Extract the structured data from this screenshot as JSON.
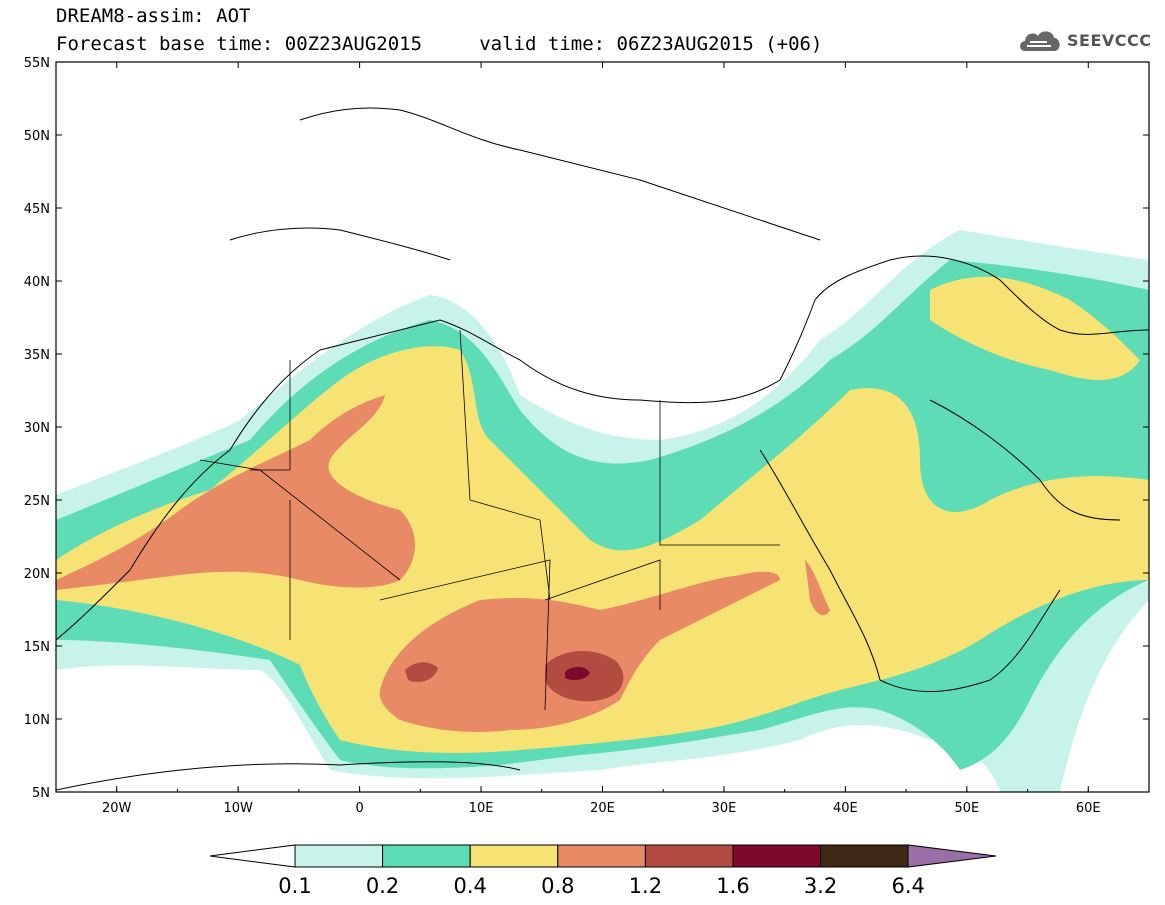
{
  "header": {
    "title_line_1": "DREAM8-assim: AOT",
    "title_line_2": "Forecast base time: 00Z23AUG2015     valid time: 06Z23AUG2015 (+06)"
  },
  "logo": {
    "text": "SEEVCCC",
    "icon": "cloud-icon"
  },
  "map": {
    "lon_labels": [
      "20W",
      "10W",
      "0",
      "10E",
      "20E",
      "30E",
      "40E",
      "50E",
      "60E"
    ],
    "lat_labels": [
      "55N",
      "50N",
      "45N",
      "40N",
      "35N",
      "30N",
      "25N",
      "20N",
      "15N",
      "10N",
      "5N"
    ],
    "lon_range": [
      -25,
      65
    ],
    "lat_range": [
      5,
      55
    ]
  },
  "colorbar": {
    "labels": [
      "0.1",
      "0.2",
      "0.4",
      "0.8",
      "1.2",
      "1.6",
      "3.2",
      "6.4"
    ],
    "colors": [
      "#ffffff",
      "#c7f3ea",
      "#5edcb6",
      "#f7e374",
      "#e88a66",
      "#b24b40",
      "#7d0a2a",
      "#3f2a18",
      "#9a6fa8"
    ]
  }
}
